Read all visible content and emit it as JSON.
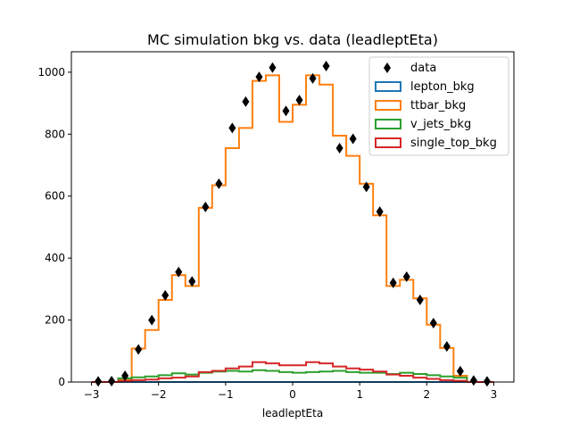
{
  "chart_data": {
    "type": "step-histogram",
    "title": "MC simulation bkg vs. data (leadleptEta)",
    "xlabel": "leadleptEta",
    "ylabel": "",
    "xlim": [
      -3.3,
      3.3
    ],
    "ylim": [
      0,
      1066
    ],
    "xticks": [
      -3,
      -2,
      -1,
      0,
      1,
      2,
      3
    ],
    "yticks": [
      0,
      200,
      400,
      600,
      800,
      1000
    ],
    "grid": false,
    "legend_position": "top-right",
    "bin_edges": [
      -3.0,
      -2.8,
      -2.6,
      -2.4,
      -2.2,
      -2.0,
      -1.8,
      -1.6,
      -1.4,
      -1.2,
      -1.0,
      -0.8,
      -0.6,
      -0.4,
      -0.2,
      0.0,
      0.2,
      0.4,
      0.6,
      0.8,
      1.0,
      1.2,
      1.4,
      1.6,
      1.8,
      2.0,
      2.2,
      2.4,
      2.6,
      2.8,
      3.0
    ],
    "series": [
      {
        "name": "lepton_bkg",
        "kind": "step",
        "color": "#1f77b4",
        "values": [
          0,
          0,
          0,
          0,
          0,
          0,
          0,
          0,
          0,
          0,
          0,
          0,
          0,
          0,
          0,
          0,
          0,
          0,
          0,
          0,
          0,
          0,
          0,
          0,
          0,
          0,
          0,
          0,
          0,
          0
        ]
      },
      {
        "name": "ttbar_bkg",
        "kind": "step",
        "color": "#ff7f0e",
        "values": [
          0,
          0,
          10,
          108,
          168,
          265,
          345,
          310,
          562,
          635,
          755,
          820,
          972,
          990,
          840,
          895,
          990,
          960,
          795,
          730,
          640,
          538,
          310,
          330,
          270,
          185,
          110,
          20,
          0,
          0
        ]
      },
      {
        "name": "v_jets_bkg",
        "kind": "step",
        "color": "#2ca02c",
        "values": [
          0,
          0,
          12,
          15,
          18,
          22,
          28,
          24,
          30,
          34,
          36,
          34,
          38,
          36,
          32,
          30,
          32,
          34,
          36,
          32,
          30,
          30,
          26,
          30,
          26,
          22,
          18,
          14,
          0,
          0
        ]
      },
      {
        "name": "single_top_bkg",
        "kind": "step",
        "color": "#d62728",
        "values": [
          0,
          0,
          4,
          6,
          8,
          12,
          14,
          18,
          32,
          36,
          44,
          50,
          64,
          60,
          54,
          54,
          64,
          60,
          50,
          44,
          40,
          34,
          24,
          20,
          14,
          10,
          6,
          4,
          0,
          0
        ]
      },
      {
        "name": "data",
        "kind": "points",
        "color": "#000000",
        "x": [
          -2.9,
          -2.7,
          -2.5,
          -2.3,
          -2.1,
          -1.9,
          -1.7,
          -1.5,
          -1.3,
          -1.1,
          -0.9,
          -0.7,
          -0.5,
          -0.3,
          -0.1,
          0.1,
          0.3,
          0.5,
          0.7,
          0.9,
          1.1,
          1.3,
          1.5,
          1.7,
          1.9,
          2.1,
          2.3,
          2.5,
          2.7,
          2.9
        ],
        "y": [
          2,
          3,
          20,
          105,
          200,
          280,
          355,
          325,
          565,
          640,
          820,
          905,
          985,
          1015,
          875,
          910,
          980,
          1020,
          755,
          785,
          630,
          550,
          320,
          340,
          265,
          190,
          115,
          35,
          5,
          2
        ]
      }
    ]
  }
}
